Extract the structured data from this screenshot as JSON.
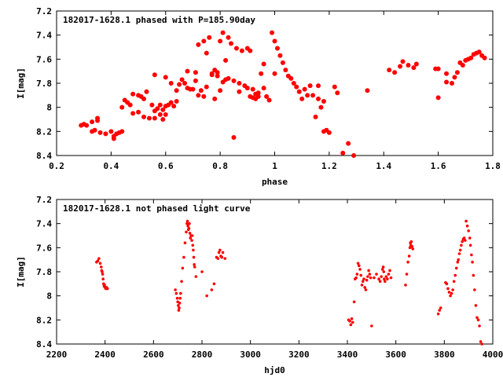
{
  "chart_data": [
    {
      "type": "scatter",
      "title": "182017-1628.1 phased with P=185.90day",
      "xlabel": "phase",
      "ylabel": "I[mag]",
      "xlim": [
        0.2,
        1.8
      ],
      "ylim": [
        8.4,
        7.2
      ],
      "y_inverted": true,
      "grid": false,
      "marker": "filled-circle",
      "marker_color": "#ff0000",
      "xticks": [
        0.2,
        0.4,
        0.6,
        0.8,
        1.0,
        1.2,
        1.4,
        1.6,
        1.8
      ],
      "xtick_labels": [
        "0.2",
        "0.4",
        "0.6",
        "0.8",
        "1",
        "1.2",
        "1.4",
        "1.6",
        "1.8"
      ],
      "yticks": [
        7.2,
        7.4,
        7.6,
        7.8,
        8.0,
        8.2,
        8.4
      ],
      "ytick_labels": [
        "7.2",
        "7.4",
        "7.6",
        "7.8",
        "8",
        "8.2",
        "8.4"
      ],
      "series": [
        {
          "x": [
            0.31,
            0.33,
            0.34,
            0.35,
            0.36,
            0.38,
            0.4,
            0.41,
            0.42,
            0.43,
            0.44,
            0.45,
            0.46,
            0.47,
            0.48,
            0.5,
            0.5,
            0.51,
            0.52,
            0.53,
            0.54,
            0.55,
            0.56,
            0.56,
            0.57,
            0.58,
            0.58,
            0.59,
            0.59,
            0.6,
            0.6,
            0.61,
            0.62,
            0.62,
            0.63,
            0.64,
            0.65,
            0.66,
            0.67,
            0.68,
            0.69,
            0.7,
            0.71,
            0.72,
            0.72,
            0.73,
            0.74,
            0.75,
            0.75,
            0.76,
            0.77,
            0.77,
            0.78,
            0.78,
            0.79,
            0.8,
            0.8,
            0.81,
            0.81,
            0.82,
            0.83,
            0.83,
            0.84,
            0.85,
            0.86,
            0.87,
            0.88,
            0.89,
            0.9,
            0.91,
            0.91,
            0.92,
            0.92,
            0.93,
            0.93,
            0.94,
            0.95,
            0.96,
            0.97,
            0.98,
            0.99,
            1.0,
            1.01,
            1.02,
            1.03,
            1.04,
            1.05,
            1.06,
            1.07,
            1.08,
            1.09,
            1.1,
            1.11,
            1.12,
            1.15,
            1.16,
            1.17,
            1.18,
            1.19,
            1.2,
            1.22,
            1.23,
            1.25,
            1.27,
            1.29,
            1.34,
            1.42,
            1.44,
            1.46,
            1.47,
            1.49,
            1.51,
            1.59,
            1.6,
            1.63,
            1.65,
            1.67,
            1.69,
            1.7,
            1.72,
            1.73,
            1.75,
            1.76,
            1.77,
            1.52,
            1.6,
            1.63,
            1.66,
            1.68,
            1.71,
            1.74,
            0.85,
            0.29,
            0.3,
            0.33,
            0.35,
            0.41,
            0.44,
            0.48,
            0.52,
            0.56,
            0.6,
            0.64,
            0.68,
            0.71,
            0.74,
            0.79,
            0.82,
            0.87,
            0.9,
            0.94,
            0.96,
            1.0,
            1.13,
            1.14,
            1.16,
            1.18
          ],
          "y": [
            8.15,
            8.12,
            8.19,
            8.11,
            8.21,
            8.22,
            8.2,
            8.26,
            8.22,
            8.21,
            8.2,
            7.94,
            7.96,
            7.98,
            7.89,
            7.9,
            8.04,
            7.91,
            8.08,
            7.87,
            8.09,
            7.98,
            8.09,
            7.73,
            8.01,
            7.98,
            8.06,
            8.02,
            8.1,
            7.75,
            7.99,
            7.98,
            7.96,
            7.8,
            7.99,
            7.95,
            7.81,
            7.77,
            7.8,
            7.84,
            7.85,
            7.85,
            7.71,
            7.48,
            7.9,
            7.86,
            7.45,
            7.83,
            7.55,
            7.42,
            7.72,
            7.73,
            7.69,
            7.93,
            7.71,
            7.45,
            7.86,
            7.79,
            7.38,
            7.61,
            7.42,
            7.76,
            7.47,
            7.78,
            7.51,
            7.8,
            7.53,
            7.82,
            7.51,
            7.53,
            7.91,
            7.85,
            7.92,
            7.89,
            7.93,
            7.88,
            7.72,
            7.84,
            7.91,
            7.94,
            7.38,
            7.45,
            7.51,
            7.57,
            7.63,
            7.69,
            7.74,
            7.76,
            7.8,
            7.83,
            7.87,
            7.93,
            7.85,
            7.9,
            8.08,
            7.82,
            8.0,
            8.2,
            8.19,
            8.21,
            7.83,
            7.88,
            8.38,
            8.3,
            8.4,
            7.86,
            7.69,
            7.71,
            7.66,
            7.62,
            7.65,
            7.67,
            7.68,
            7.92,
            7.79,
            7.8,
            7.71,
            7.65,
            7.61,
            7.59,
            7.56,
            7.54,
            7.57,
            7.59,
            7.64,
            7.68,
            7.72,
            7.75,
            7.63,
            7.6,
            7.55,
            8.25,
            8.15,
            8.14,
            8.2,
            8.09,
            8.24,
            8.0,
            8.05,
            7.93,
            8.03,
            8.06,
            7.86,
            7.7,
            7.78,
            7.91,
            7.74,
            7.77,
            7.87,
            7.84,
            7.91,
            7.64,
            7.72,
            7.82,
            7.9,
            7.93,
            7.95
          ]
        }
      ]
    },
    {
      "type": "scatter",
      "title": "182017-1628.1 not phased light curve",
      "xlabel": "hjd0",
      "ylabel": "I[mag]",
      "xlim": [
        2200,
        4000
      ],
      "ylim": [
        8.4,
        7.2
      ],
      "y_inverted": true,
      "grid": false,
      "marker": "small-filled-dot",
      "marker_color": "#ff0000",
      "xticks": [
        2200,
        2400,
        2600,
        2800,
        3000,
        3200,
        3400,
        3600,
        3800,
        4000
      ],
      "xtick_labels": [
        "2200",
        "2400",
        "2600",
        "2800",
        "3000",
        "3200",
        "3400",
        "3600",
        "3800",
        "4000"
      ],
      "yticks": [
        7.2,
        7.4,
        7.6,
        7.8,
        8.0,
        8.2,
        8.4
      ],
      "ytick_labels": [
        "7.2",
        "7.4",
        "7.6",
        "7.8",
        "8",
        "8.2",
        "8.4"
      ],
      "series": [
        {
          "x": [
            2365,
            2370,
            2375,
            2380,
            2384,
            2386,
            2388,
            2390,
            2392,
            2394,
            2396,
            2398,
            2400,
            2403,
            2406,
            2410,
            2690,
            2694,
            2698,
            2700,
            2702,
            2704,
            2706,
            2708,
            2710,
            2712,
            2716,
            2720,
            2725,
            2730,
            2735,
            2738,
            2740,
            2742,
            2744,
            2746,
            2748,
            2750,
            2752,
            2755,
            2758,
            2760,
            2762,
            2764,
            2766,
            2768,
            2770,
            2775,
            2800,
            2820,
            2840,
            2850,
            2860,
            2866,
            2870,
            2874,
            2878,
            2882,
            2886,
            2895,
            3405,
            3410,
            3414,
            3418,
            3422,
            3428,
            3432,
            3436,
            3440,
            3444,
            3448,
            3452,
            3456,
            3460,
            3464,
            3468,
            3472,
            3476,
            3480,
            3484,
            3488,
            3492,
            3496,
            3500,
            3510,
            3520,
            3530,
            3535,
            3540,
            3545,
            3548,
            3550,
            3552,
            3555,
            3560,
            3565,
            3570,
            3575,
            3580,
            3640,
            3645,
            3650,
            3655,
            3658,
            3660,
            3662,
            3664,
            3667,
            3670,
            3775,
            3780,
            3785,
            3805,
            3810,
            3815,
            3820,
            3825,
            3830,
            3835,
            3840,
            3845,
            3850,
            3855,
            3858,
            3862,
            3866,
            3870,
            3874,
            3878,
            3882,
            3886,
            3890,
            3895,
            3900,
            3905,
            3908,
            3912,
            3916,
            3920,
            3925,
            3930,
            3935,
            3940,
            3945,
            3950,
            3955
          ],
          "y": [
            7.72,
            7.71,
            7.69,
            7.73,
            7.76,
            7.79,
            7.8,
            7.82,
            7.86,
            7.9,
            7.92,
            7.91,
            7.93,
            7.94,
            7.93,
            7.94,
            7.95,
            7.98,
            8.02,
            8.05,
            8.08,
            8.12,
            8.1,
            8.06,
            8.02,
            7.98,
            7.88,
            7.77,
            7.68,
            7.56,
            7.47,
            7.4,
            7.38,
            7.42,
            7.45,
            7.44,
            7.4,
            7.48,
            7.52,
            7.5,
            7.54,
            7.5,
            7.58,
            7.62,
            7.68,
            7.74,
            7.76,
            7.84,
            7.8,
            8.0,
            7.95,
            7.9,
            7.68,
            7.69,
            7.64,
            7.62,
            7.67,
            7.68,
            7.64,
            7.69,
            8.2,
            8.21,
            8.24,
            8.19,
            8.22,
            8.05,
            7.86,
            7.85,
            7.82,
            7.73,
            7.75,
            7.78,
            7.83,
            7.91,
            7.88,
            7.86,
            7.93,
            7.95,
            7.87,
            7.84,
            7.79,
            7.82,
            7.85,
            8.25,
            7.85,
            7.82,
            7.86,
            7.88,
            7.84,
            7.78,
            7.76,
            7.8,
            7.86,
            7.88,
            7.84,
            7.86,
            7.82,
            7.79,
            7.85,
            7.91,
            7.82,
            7.72,
            7.67,
            7.6,
            7.56,
            7.58,
            7.55,
            7.59,
            7.61,
            8.15,
            8.12,
            8.1,
            7.89,
            7.9,
            7.94,
            7.97,
            8.0,
            7.98,
            7.95,
            7.88,
            7.83,
            7.77,
            7.72,
            7.7,
            7.65,
            7.62,
            7.58,
            7.55,
            7.53,
            7.52,
            7.54,
            7.38,
            7.42,
            7.46,
            7.52,
            7.58,
            7.66,
            7.72,
            7.83,
            7.95,
            8.08,
            8.18,
            8.2,
            8.25,
            8.38,
            8.4
          ]
        }
      ]
    }
  ]
}
